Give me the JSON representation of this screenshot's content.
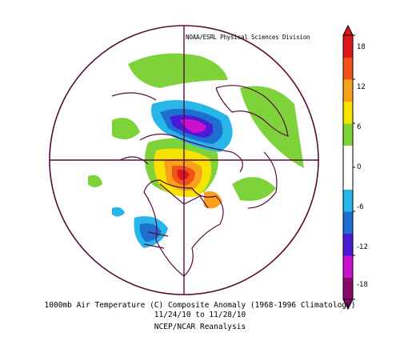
{
  "credit": "NOAA/ESRL Physical Sciences Division",
  "caption": {
    "title": "1000mb Air Temperature (C) Composite Anomaly (1968-1996 Climatology)",
    "dates": "11/24/10  to 11/28/10",
    "source": "NCEP/NCAR Reanalysis"
  },
  "colorbar": {
    "ticks": [
      "18",
      "12",
      "6",
      "0",
      "-6",
      "-12",
      "-18"
    ],
    "colors": [
      "#8a0a6b",
      "#cc11cc",
      "#4a1bd6",
      "#1e6fd0",
      "#26b6e8",
      "#ffffff",
      "#ffffff",
      "#7ed23a",
      "#f7e300",
      "#f7a21a",
      "#f0541a",
      "#e0171c"
    ]
  }
}
